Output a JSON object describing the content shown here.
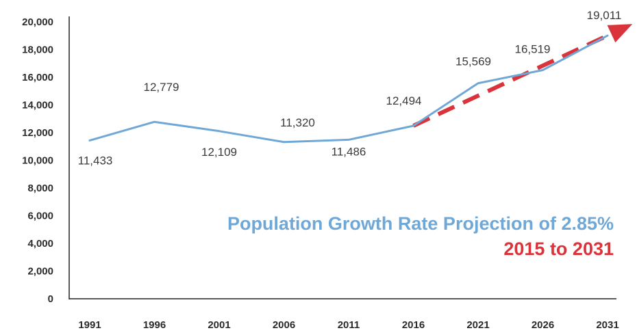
{
  "chart_data": {
    "type": "line",
    "title": "",
    "xlabel": "",
    "ylabel": "",
    "categories": [
      "1991",
      "1996",
      "2001",
      "2006",
      "2011",
      "2016",
      "2021",
      "2026",
      "2031"
    ],
    "ylim": [
      0,
      20000
    ],
    "yticks": [
      "0",
      "2,000",
      "4,000",
      "6,000",
      "8,000",
      "10,000",
      "12,000",
      "14,000",
      "16,000",
      "18,000",
      "20,000"
    ],
    "grid": false,
    "series": [
      {
        "name": "",
        "style": "solid",
        "color": "#6fa8d6",
        "values": [
          11433,
          12779,
          12109,
          11320,
          11486,
          12494,
          15569,
          16519,
          19011
        ],
        "labels": [
          "11,433",
          "12,779",
          "12,109",
          "11,320",
          "11,486",
          "12,494",
          "15,569",
          "16,519",
          "19,011"
        ]
      },
      {
        "name": "",
        "style": "dashed-arrow",
        "color": "#d9343b",
        "x": [
          "2016",
          "2031"
        ],
        "values": [
          12494,
          19011
        ]
      }
    ],
    "annotations": [
      {
        "text": "Population Growth Rate Projection of 2.85%",
        "color": "#6fa8d6"
      },
      {
        "text": "2015 to 2031",
        "color": "#d9343b"
      }
    ]
  }
}
